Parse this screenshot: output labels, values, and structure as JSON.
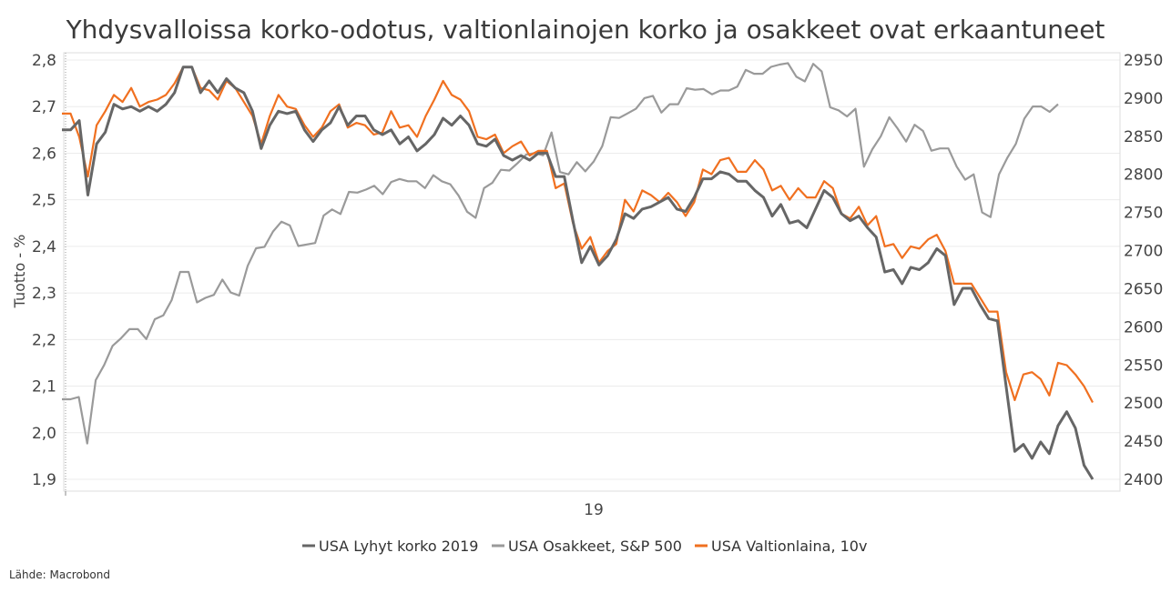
{
  "chart_data": {
    "type": "line",
    "title": "Yhdysvalloissa korko-odotus, valtionlainojen korko ja osakkeet ovat erkaantuneet",
    "ylabel_left": "Tuotto - %",
    "ylim_left": [
      1.9,
      2.8
    ],
    "yticks_left": [
      "2,8",
      "2,7",
      "2,6",
      "2,5",
      "2,4",
      "2,3",
      "2,2",
      "2,1",
      "2,0",
      "1,9"
    ],
    "ylim_right": [
      2400,
      2950
    ],
    "yticks_right": [
      "2950",
      "2900",
      "2850",
      "2800",
      "2750",
      "2700",
      "2650",
      "2600",
      "2550",
      "2500",
      "2450",
      "2400"
    ],
    "xtick_label": "19",
    "grid": "horizontal",
    "legend_position": "bottom",
    "source": "Lähde: Macrobond",
    "series": [
      {
        "name": "USA Lyhyt korko 2019",
        "axis": "left",
        "color": "#666666",
        "values": [
          2.65,
          2.65,
          2.67,
          2.51,
          2.62,
          2.645,
          2.705,
          2.695,
          2.7,
          2.69,
          2.7,
          2.69,
          2.705,
          2.73,
          2.785,
          2.785,
          2.73,
          2.755,
          2.73,
          2.76,
          2.74,
          2.73,
          2.69,
          2.61,
          2.66,
          2.69,
          2.685,
          2.69,
          2.65,
          2.625,
          2.65,
          2.665,
          2.7,
          2.66,
          2.68,
          2.68,
          2.65,
          2.64,
          2.65,
          2.62,
          2.635,
          2.605,
          2.62,
          2.64,
          2.675,
          2.66,
          2.68,
          2.66,
          2.62,
          2.615,
          2.63,
          2.595,
          2.585,
          2.595,
          2.585,
          2.6,
          2.6,
          2.55,
          2.55,
          2.455,
          2.365,
          2.4,
          2.36,
          2.38,
          2.415,
          2.47,
          2.46,
          2.48,
          2.485,
          2.495,
          2.505,
          2.48,
          2.475,
          2.505,
          2.545,
          2.545,
          2.56,
          2.555,
          2.54,
          2.54,
          2.52,
          2.505,
          2.465,
          2.49,
          2.45,
          2.455,
          2.44,
          2.48,
          2.52,
          2.505,
          2.47,
          2.455,
          2.465,
          2.44,
          2.42,
          2.345,
          2.35,
          2.32,
          2.355,
          2.35,
          2.365,
          2.395,
          2.38,
          2.275,
          2.31,
          2.31,
          2.275,
          2.245,
          2.24,
          2.1,
          1.96,
          1.975,
          1.945,
          1.98,
          1.955,
          2.015,
          2.045,
          2.01,
          1.93,
          1.9
        ]
      },
      {
        "name": "USA Osakkeet, S&P 500",
        "axis": "right",
        "color": "#9a9a9a",
        "values": [
          2505,
          2505,
          2508,
          2447,
          2530,
          2550,
          2575,
          2585,
          2597,
          2597,
          2584,
          2610,
          2615,
          2635,
          2672,
          2672,
          2632,
          2638,
          2642,
          2662,
          2645,
          2641,
          2680,
          2703,
          2705,
          2725,
          2738,
          2733,
          2706,
          2708,
          2710,
          2746,
          2754,
          2748,
          2777,
          2776,
          2780,
          2785,
          2774,
          2790,
          2794,
          2791,
          2791,
          2782,
          2799,
          2791,
          2787,
          2772,
          2751,
          2743,
          2782,
          2789,
          2806,
          2805,
          2815,
          2826,
          2828,
          2825,
          2855,
          2803,
          2800,
          2816,
          2804,
          2817,
          2837,
          2875,
          2874,
          2880,
          2886,
          2900,
          2903,
          2881,
          2892,
          2892,
          2913,
          2911,
          2912,
          2905,
          2910,
          2910,
          2915,
          2937,
          2932,
          2932,
          2941,
          2944,
          2946,
          2928,
          2922,
          2945,
          2935,
          2888,
          2884,
          2876,
          2886,
          2810,
          2833,
          2850,
          2875,
          2860,
          2843,
          2865,
          2857,
          2831,
          2834,
          2834,
          2810,
          2793,
          2800,
          2750,
          2744,
          2800,
          2822,
          2840,
          2873,
          2889,
          2889,
          2882,
          2892
        ]
      },
      {
        "name": "USA Valtionlaina, 10v",
        "axis": "left",
        "color": "#f07020",
        "values": [
          2.685,
          2.685,
          2.635,
          2.55,
          2.66,
          2.69,
          2.725,
          2.71,
          2.74,
          2.7,
          2.71,
          2.715,
          2.725,
          2.75,
          2.785,
          2.785,
          2.74,
          2.735,
          2.715,
          2.755,
          2.74,
          2.71,
          2.68,
          2.62,
          2.68,
          2.725,
          2.7,
          2.695,
          2.66,
          2.635,
          2.655,
          2.69,
          2.705,
          2.655,
          2.665,
          2.66,
          2.64,
          2.645,
          2.69,
          2.655,
          2.66,
          2.635,
          2.68,
          2.715,
          2.755,
          2.725,
          2.715,
          2.69,
          2.635,
          2.63,
          2.64,
          2.6,
          2.615,
          2.625,
          2.595,
          2.605,
          2.605,
          2.525,
          2.535,
          2.45,
          2.395,
          2.42,
          2.365,
          2.39,
          2.405,
          2.5,
          2.475,
          2.52,
          2.51,
          2.495,
          2.515,
          2.495,
          2.465,
          2.495,
          2.565,
          2.555,
          2.585,
          2.59,
          2.56,
          2.56,
          2.585,
          2.565,
          2.52,
          2.53,
          2.5,
          2.525,
          2.505,
          2.505,
          2.54,
          2.525,
          2.47,
          2.46,
          2.485,
          2.445,
          2.465,
          2.4,
          2.405,
          2.375,
          2.4,
          2.395,
          2.415,
          2.425,
          2.39,
          2.32,
          2.32,
          2.32,
          2.29,
          2.26,
          2.26,
          2.13,
          2.07,
          2.125,
          2.13,
          2.115,
          2.08,
          2.15,
          2.145,
          2.125,
          2.1,
          2.065
        ]
      }
    ]
  }
}
